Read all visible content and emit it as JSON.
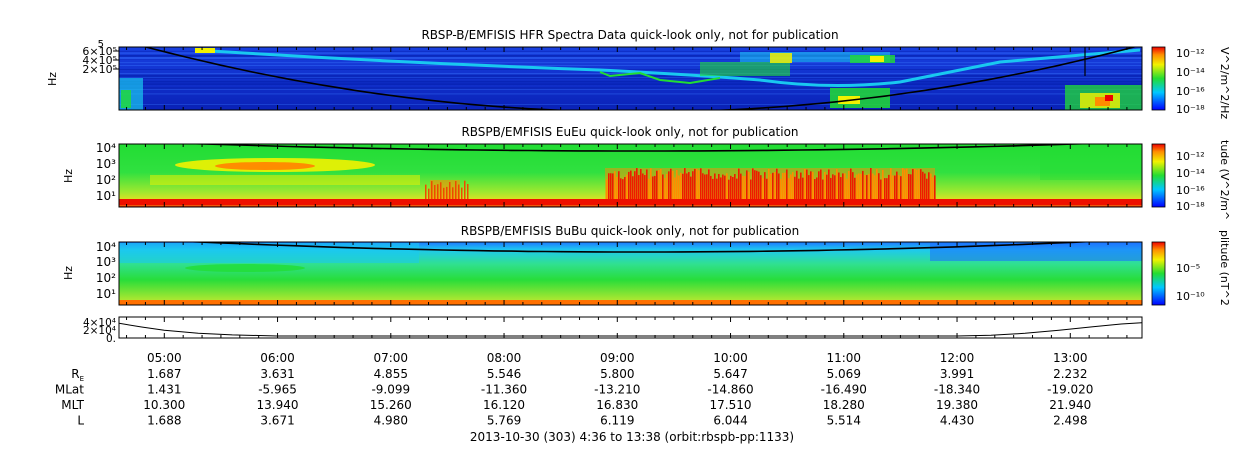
{
  "chart_data": [
    {
      "type": "heatmap",
      "title": "RBSP-B/EMFISIS  HFR Spectra Data quick-look only, not for publication",
      "ylabel": "Hz",
      "y_ticks": [
        "2×10⁵",
        "4×10⁵",
        "6×10⁵"
      ],
      "y_top_tick": "5",
      "colorbar": {
        "label": "V^2/m^2/Hz",
        "ticks": [
          "10⁻¹²",
          "10⁻¹⁴",
          "10⁻¹⁶",
          "10⁻¹⁸"
        ]
      }
    },
    {
      "type": "heatmap",
      "title": "RBSPB/EMFISIS  EuEu quick-look only, not for publication",
      "ylabel": "Hz",
      "y_ticks": [
        "10⁴",
        "10³",
        "10²",
        "10¹"
      ],
      "colorbar": {
        "label": "tude (V^2/m^",
        "ticks": [
          "10⁻¹²",
          "10⁻¹⁴",
          "10⁻¹⁶",
          "10⁻¹⁸"
        ]
      }
    },
    {
      "type": "heatmap",
      "title": "RBSPB/EMFISIS  BuBu quick-look only, not for publication",
      "ylabel": "Hz",
      "y_ticks": [
        "10⁴",
        "10³",
        "10²",
        "10¹"
      ],
      "colorbar": {
        "label": "plitude (nT^2",
        "ticks": [
          "10⁻⁵",
          "10⁻¹⁰"
        ]
      }
    },
    {
      "type": "line",
      "y_ticks": [
        "4×10⁴",
        "2×10⁴",
        "0."
      ],
      "x_hours": [
        4.6,
        4.8,
        5.0,
        5.3,
        5.6,
        6.0,
        7.0,
        8.0,
        9.0,
        10.0,
        11.0,
        12.0,
        12.3,
        12.6,
        12.9,
        13.2,
        13.45,
        13.63
      ],
      "y_rel": [
        0.15,
        0.4,
        0.62,
        0.82,
        0.93,
        1.0,
        1.0,
        1.0,
        1.0,
        1.0,
        1.0,
        1.0,
        0.95,
        0.82,
        0.62,
        0.38,
        0.2,
        0.12
      ]
    }
  ],
  "x_axis": {
    "times": [
      "05:00",
      "06:00",
      "07:00",
      "08:00",
      "09:00",
      "10:00",
      "11:00",
      "12:00",
      "13:00"
    ],
    "hours": [
      5,
      6,
      7,
      8,
      9,
      10,
      11,
      12,
      13
    ],
    "range_hours": [
      4.6,
      13.6333
    ]
  },
  "ephemeris": [
    {
      "label": "R_E",
      "base": "R",
      "sub": "E",
      "values": [
        "1.687",
        "3.631",
        "4.855",
        "5.546",
        "5.800",
        "5.647",
        "5.069",
        "3.991",
        "2.232"
      ]
    },
    {
      "label": "MLat",
      "values": [
        "1.431",
        "-5.965",
        "-9.099",
        "-11.360",
        "-13.210",
        "-14.860",
        "-16.490",
        "-18.340",
        "-19.020"
      ]
    },
    {
      "label": "MLT",
      "values": [
        "10.300",
        "13.940",
        "15.260",
        "16.120",
        "16.830",
        "17.510",
        "18.280",
        "19.380",
        "21.940"
      ]
    },
    {
      "label": "L",
      "values": [
        "1.688",
        "3.671",
        "4.980",
        "5.769",
        "6.119",
        "6.044",
        "5.514",
        "4.430",
        "2.498"
      ]
    }
  ],
  "footer": "2013-10-30 (303) 4:36 to 13:38 (orbit:rbspb-pp:1133)",
  "colors": {
    "blue": "#0a2fd0",
    "cyan": "#19c8f0",
    "green": "#22dd33",
    "yellow": "#f2f200",
    "orange": "#ff8c00",
    "red": "#ee0000"
  }
}
